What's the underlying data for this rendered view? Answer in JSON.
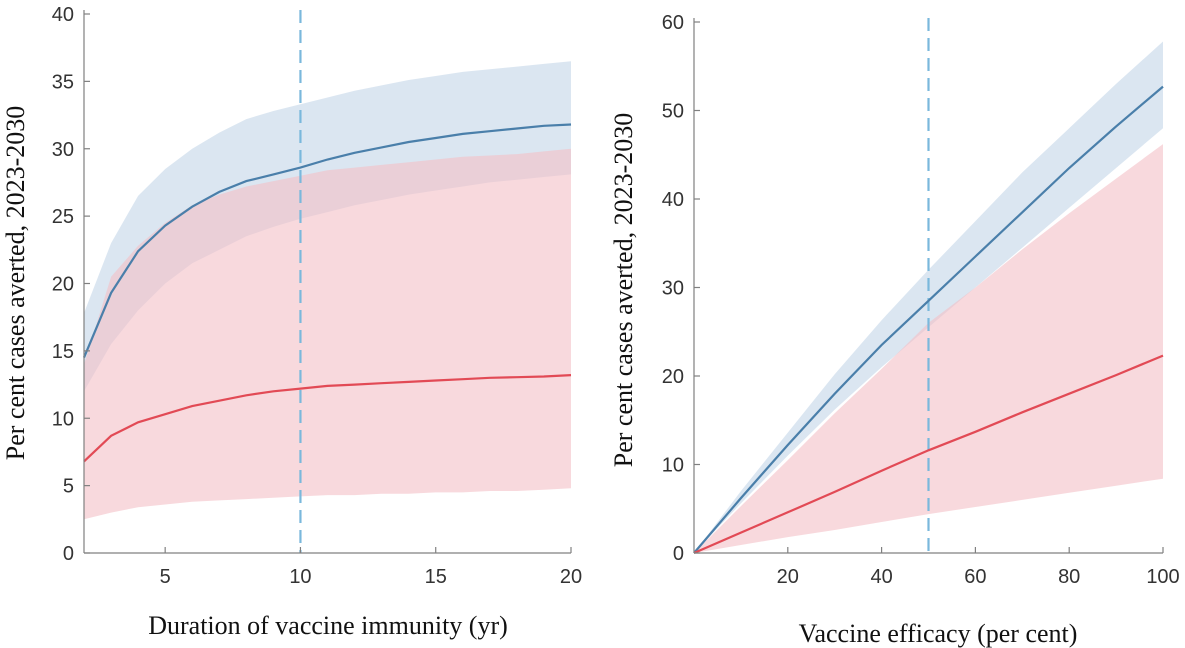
{
  "chart_data": [
    {
      "type": "line",
      "xlabel": "Duration of vaccine immunity (yr)",
      "ylabel": "Per cent cases averted, 2023-2030",
      "xlim": [
        2,
        20
      ],
      "ylim": [
        0,
        40
      ],
      "xticks": [
        5,
        10,
        15,
        20
      ],
      "yticks": [
        0,
        5,
        10,
        15,
        20,
        25,
        30,
        35,
        40
      ],
      "reference_line_x": 10,
      "reference_line_color": "#7ab8dc",
      "x": [
        2,
        3,
        4,
        5,
        6,
        7,
        8,
        9,
        10,
        11,
        12,
        13,
        14,
        15,
        16,
        17,
        18,
        19,
        20
      ],
      "series": [
        {
          "color": "#4a7faa",
          "band_color": "#c7d9ea",
          "values": [
            14.5,
            19.3,
            22.4,
            24.3,
            25.7,
            26.8,
            27.6,
            28.1,
            28.6,
            29.2,
            29.7,
            30.1,
            30.5,
            30.8,
            31.1,
            31.3,
            31.5,
            31.7,
            31.8
          ],
          "lower": [
            12.0,
            15.5,
            18.0,
            20.0,
            21.5,
            22.5,
            23.5,
            24.2,
            24.8,
            25.3,
            25.8,
            26.2,
            26.6,
            26.9,
            27.2,
            27.5,
            27.7,
            27.9,
            28.1
          ],
          "upper": [
            17.8,
            23.0,
            26.5,
            28.5,
            30.0,
            31.2,
            32.2,
            32.8,
            33.3,
            33.8,
            34.3,
            34.7,
            35.1,
            35.4,
            35.7,
            35.9,
            36.1,
            36.3,
            36.5
          ]
        },
        {
          "color": "#e24a55",
          "band_color": "#f4c0c6",
          "values": [
            6.8,
            8.7,
            9.7,
            10.3,
            10.9,
            11.3,
            11.7,
            12.0,
            12.2,
            12.4,
            12.5,
            12.6,
            12.7,
            12.8,
            12.9,
            13.0,
            13.05,
            13.1,
            13.2
          ],
          "lower": [
            2.5,
            3.0,
            3.4,
            3.6,
            3.8,
            3.9,
            4.0,
            4.1,
            4.2,
            4.3,
            4.3,
            4.4,
            4.4,
            4.5,
            4.5,
            4.6,
            4.6,
            4.7,
            4.8
          ],
          "upper": [
            14.0,
            20.5,
            22.8,
            24.5,
            25.8,
            26.6,
            27.2,
            27.6,
            28.0,
            28.4,
            28.6,
            28.8,
            29.0,
            29.2,
            29.4,
            29.5,
            29.6,
            29.8,
            30.0
          ]
        }
      ]
    },
    {
      "type": "line",
      "xlabel": "Vaccine efficacy (per cent)",
      "ylabel": "Per cent cases averted, 2023-2030",
      "xlim": [
        0,
        100
      ],
      "ylim": [
        0,
        60
      ],
      "xticks": [
        20,
        40,
        60,
        80,
        100
      ],
      "yticks": [
        0,
        10,
        20,
        30,
        40,
        50,
        60
      ],
      "reference_line_x": 50,
      "reference_line_color": "#7ab8dc",
      "x": [
        0,
        10,
        20,
        30,
        40,
        50,
        60,
        70,
        80,
        90,
        100
      ],
      "series": [
        {
          "color": "#4a7faa",
          "band_color": "#c7d9ea",
          "values": [
            0,
            6.2,
            12.2,
            18.0,
            23.5,
            28.5,
            33.5,
            38.5,
            43.5,
            48.2,
            52.7
          ],
          "lower": [
            0,
            5.6,
            11.0,
            16.2,
            21.0,
            25.5,
            30.0,
            34.5,
            39.0,
            43.5,
            48.0
          ],
          "upper": [
            0,
            7.0,
            13.6,
            20.2,
            26.3,
            32.0,
            37.5,
            43.0,
            48.0,
            53.0,
            57.8
          ]
        },
        {
          "color": "#e24a55",
          "band_color": "#f4c0c6",
          "values": [
            0,
            2.3,
            4.6,
            6.9,
            9.3,
            11.6,
            13.7,
            15.9,
            18.0,
            20.1,
            22.3
          ],
          "lower": [
            0,
            0.9,
            1.8,
            2.6,
            3.5,
            4.4,
            5.2,
            6.0,
            6.8,
            7.6,
            8.4
          ],
          "upper": [
            0,
            5.3,
            10.5,
            15.8,
            20.8,
            26.0,
            30.0,
            34.3,
            38.4,
            42.3,
            46.2
          ]
        }
      ]
    }
  ]
}
